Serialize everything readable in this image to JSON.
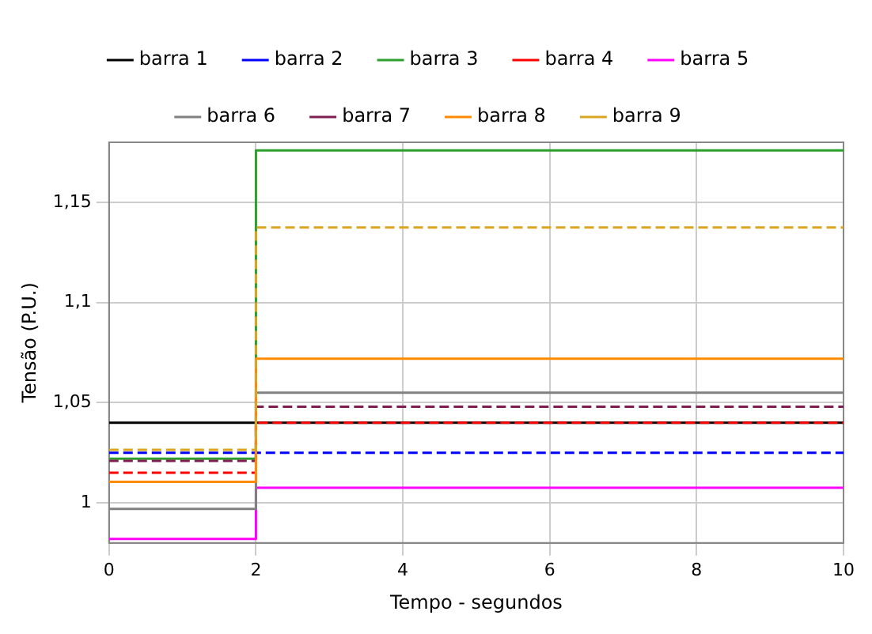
{
  "chart_data": {
    "type": "step",
    "xlabel": "Tempo - segundos",
    "ylabel": "Tensão (P.U.)",
    "x": [
      0,
      2,
      10
    ],
    "series": [
      {
        "name": "barra 1",
        "color": "#000000",
        "line_style": "solid",
        "values": [
          1.04,
          1.04,
          1.04
        ]
      },
      {
        "name": "barra 2",
        "color": "#0000ff",
        "line_style": "dashed",
        "values": [
          1.025,
          1.025,
          1.025
        ]
      },
      {
        "name": "barra 3",
        "color": "#2ca02c",
        "line_style": "solid",
        "values": [
          1.022,
          1.176,
          1.176
        ]
      },
      {
        "name": "barra 4",
        "color": "#ff0000",
        "line_style": "dashed",
        "values": [
          1.015,
          1.04,
          1.04
        ]
      },
      {
        "name": "barra 5",
        "color": "#ff00ff",
        "line_style": "solid",
        "values": [
          0.982,
          1.0075,
          1.0075
        ]
      },
      {
        "name": "barra 6",
        "color": "#808080",
        "line_style": "solid",
        "values": [
          0.997,
          1.055,
          1.055
        ]
      },
      {
        "name": "barra 7",
        "color": "#7e1e50",
        "line_style": "dashed",
        "values": [
          1.021,
          1.048,
          1.048
        ]
      },
      {
        "name": "barra 8",
        "color": "#ff8c00",
        "line_style": "solid",
        "values": [
          1.0105,
          1.072,
          1.072
        ]
      },
      {
        "name": "barra 9",
        "color": "#daa520",
        "line_style": "dashed",
        "values": [
          1.0265,
          1.1375,
          1.1375
        ]
      }
    ],
    "xlim": [
      0,
      10
    ],
    "xticks": [
      0,
      2,
      4,
      6,
      8,
      10
    ],
    "ylim": [
      0.98,
      1.18
    ],
    "yticks": [
      1,
      {
        "value": 1.05,
        "label": "1,05"
      },
      {
        "value": 1.1,
        "label": "1,1"
      },
      {
        "value": 1.15,
        "label": "1,15"
      }
    ],
    "grid": true,
    "legend": "top",
    "marker": "none"
  }
}
